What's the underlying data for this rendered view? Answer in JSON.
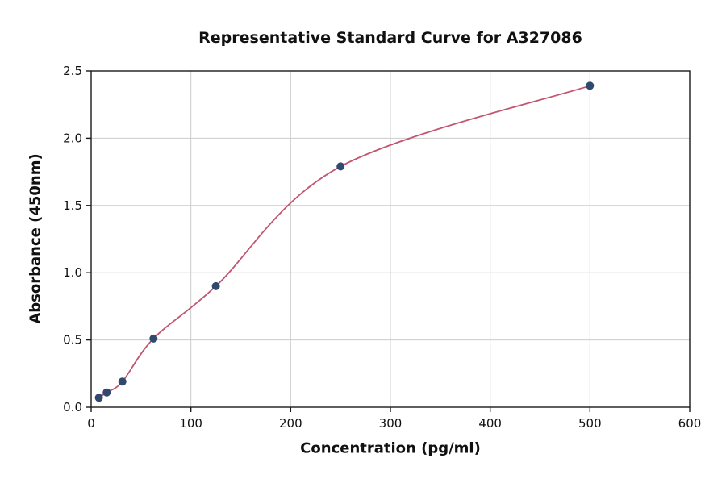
{
  "chart_data": {
    "type": "scatter",
    "title": "Representative Standard Curve for A327086",
    "xlabel": "Concentration (pg/ml)",
    "ylabel": "Absorbance (450nm)",
    "xlim": [
      0,
      600
    ],
    "ylim": [
      0,
      2.5
    ],
    "x_ticks": [
      0,
      100,
      200,
      300,
      400,
      500,
      600
    ],
    "y_ticks": [
      0.0,
      0.5,
      1.0,
      1.5,
      2.0,
      2.5
    ],
    "grid": true,
    "legend": "none",
    "points": [
      [
        7.8,
        0.07
      ],
      [
        15.6,
        0.11
      ],
      [
        31.3,
        0.19
      ],
      [
        62.5,
        0.51
      ],
      [
        125,
        0.9
      ],
      [
        250,
        1.79
      ],
      [
        500,
        2.39
      ]
    ],
    "curve_color": "#c25570",
    "point_color": "#2f4a6e",
    "grid_color": "#cccccc",
    "spine_color": "#1a1a1a"
  }
}
